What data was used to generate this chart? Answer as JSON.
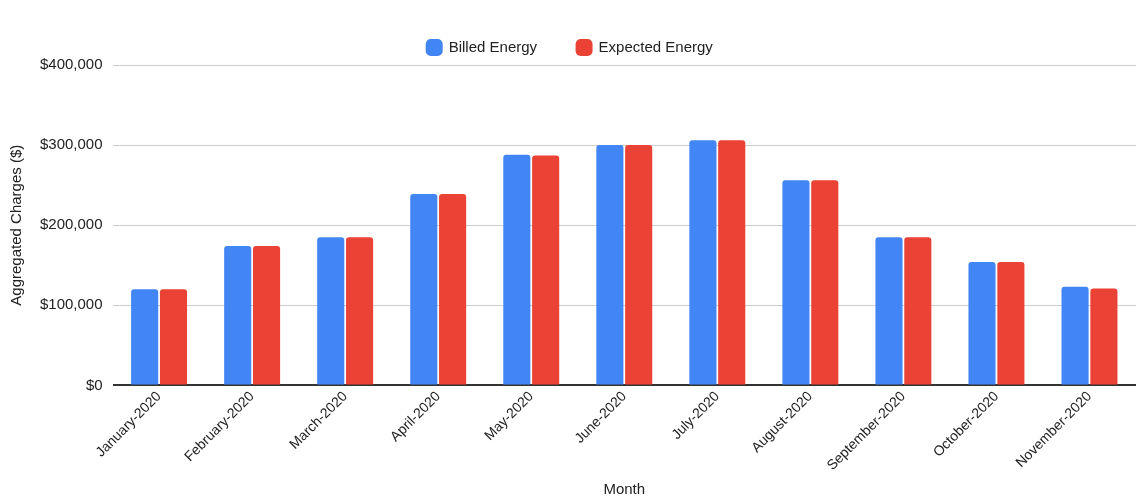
{
  "chart_data": {
    "type": "bar",
    "xlabel": "Month",
    "ylabel": "Aggregated Charges ($)",
    "categories": [
      "January-2020",
      "February-2020",
      "March-2020",
      "April-2020",
      "May-2020",
      "June-2020",
      "July-2020",
      "August-2020",
      "September-2020",
      "October-2020",
      "November-2020"
    ],
    "series": [
      {
        "name": "Billed Energy",
        "color": "#4285f4",
        "values": [
          120000,
          174000,
          185000,
          239000,
          288000,
          300000,
          306000,
          256000,
          185000,
          154000,
          123000
        ]
      },
      {
        "name": "Expected Energy",
        "color": "#ea4335",
        "values": [
          120000,
          174000,
          185000,
          239000,
          287000,
          300000,
          306000,
          256000,
          185000,
          154000,
          121000
        ]
      }
    ],
    "ylim": [
      0,
      400000
    ],
    "yticks": [
      {
        "value": 0,
        "label": "$0"
      },
      {
        "value": 100000,
        "label": "$100,000"
      },
      {
        "value": 200000,
        "label": "$200,000"
      },
      {
        "value": 300000,
        "label": "$300,000"
      },
      {
        "value": 400000,
        "label": "$400,000"
      }
    ],
    "grid": "y",
    "legend": "top"
  }
}
